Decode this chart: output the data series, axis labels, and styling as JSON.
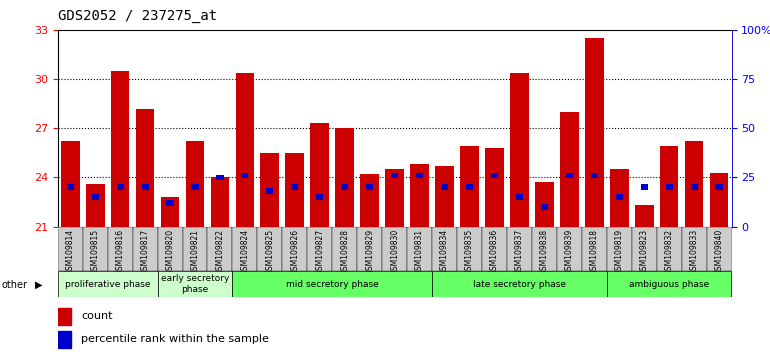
{
  "title": "GDS2052 / 237275_at",
  "samples": [
    "GSM109814",
    "GSM109815",
    "GSM109816",
    "GSM109817",
    "GSM109820",
    "GSM109821",
    "GSM109822",
    "GSM109824",
    "GSM109825",
    "GSM109826",
    "GSM109827",
    "GSM109828",
    "GSM109829",
    "GSM109830",
    "GSM109831",
    "GSM109834",
    "GSM109835",
    "GSM109836",
    "GSM109837",
    "GSM109838",
    "GSM109839",
    "GSM109818",
    "GSM109819",
    "GSM109823",
    "GSM109832",
    "GSM109833",
    "GSM109840"
  ],
  "counts": [
    26.2,
    23.6,
    30.5,
    28.2,
    22.8,
    26.2,
    24.0,
    30.4,
    25.5,
    25.5,
    27.3,
    27.0,
    24.2,
    24.5,
    24.8,
    24.7,
    25.9,
    25.8,
    30.4,
    23.7,
    28.0,
    32.5,
    24.5,
    22.3,
    25.9,
    26.2,
    24.3
  ],
  "percentile_vals_right": [
    20,
    15,
    20,
    20,
    12,
    20,
    25,
    26,
    18,
    20,
    15,
    20,
    20,
    26,
    26,
    20,
    20,
    26,
    15,
    10,
    26,
    26,
    15,
    20,
    20,
    20,
    20
  ],
  "phase_defs": [
    {
      "label": "proliferative phase",
      "start": 0,
      "end": 3,
      "color": "#ccffcc"
    },
    {
      "label": "early secretory\nphase",
      "start": 4,
      "end": 6,
      "color": "#ccffcc"
    },
    {
      "label": "mid secretory phase",
      "start": 7,
      "end": 14,
      "color": "#66ff66"
    },
    {
      "label": "late secretory phase",
      "start": 15,
      "end": 21,
      "color": "#66ff66"
    },
    {
      "label": "ambiguous phase",
      "start": 22,
      "end": 26,
      "color": "#66ff66"
    }
  ],
  "bar_color": "#cc0000",
  "percentile_color": "#0000cc",
  "ylim_left": [
    21,
    33
  ],
  "ylim_right": [
    0,
    100
  ],
  "yticks_left": [
    21,
    24,
    27,
    30,
    33
  ],
  "yticks_right": [
    0,
    25,
    50,
    75,
    100
  ],
  "hlines": [
    24,
    27,
    30
  ]
}
